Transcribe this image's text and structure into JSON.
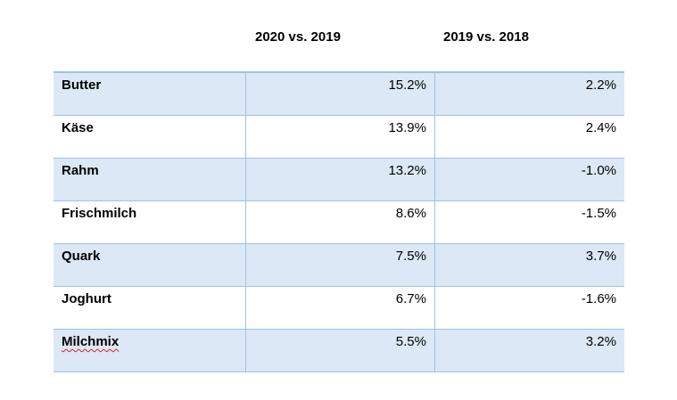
{
  "chart_data": {
    "type": "table",
    "columns": [
      "",
      "2020 vs. 2019",
      "2019 vs. 2018"
    ],
    "rows": [
      {
        "label": "Butter",
        "v2020": "15.2%",
        "v2019": "2.2%"
      },
      {
        "label": "Käse",
        "v2020": "13.9%",
        "v2019": "2.4%"
      },
      {
        "label": "Rahm",
        "v2020": "13.2%",
        "v2019": "-1.0%"
      },
      {
        "label": "Frischmilch",
        "v2020": "8.6%",
        "v2019": "-1.5%"
      },
      {
        "label": "Quark",
        "v2020": "7.5%",
        "v2019": "3.7%"
      },
      {
        "label": "Joghurt",
        "v2020": "6.7%",
        "v2019": "-1.6%"
      },
      {
        "label": "Milchmix",
        "v2020": "5.5%",
        "v2019": "3.2%"
      }
    ],
    "values_2020_vs_2019": [
      15.2,
      13.9,
      13.2,
      8.6,
      7.5,
      6.7,
      5.5
    ],
    "values_2019_vs_2018": [
      2.2,
      2.4,
      -1.0,
      -1.5,
      3.7,
      -1.6,
      3.2
    ],
    "colors": {
      "shaded_row": "#dce8f5",
      "border": "#9dc3e6"
    }
  }
}
